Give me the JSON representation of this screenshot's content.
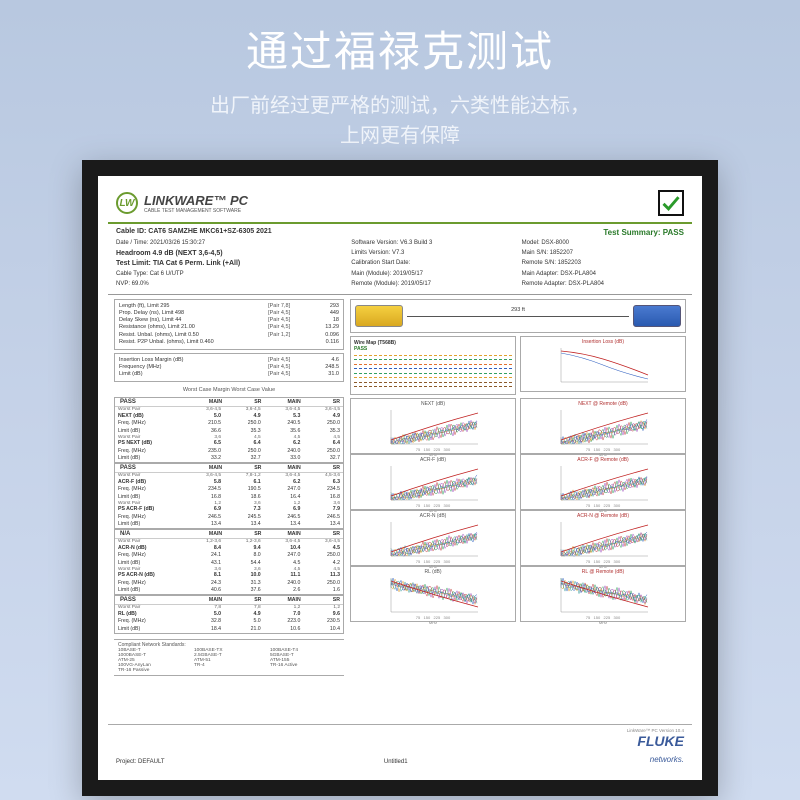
{
  "hero": {
    "title": "通过福禄克测试",
    "subtitle_l1": "出厂前经过更严格的测试，六类性能达标，",
    "subtitle_l2": "上网更有保障"
  },
  "logo": {
    "badge": "LW",
    "line1": "LINKWARE™ PC",
    "line2": "CABLE TEST MANAGEMENT SOFTWARE"
  },
  "summary": {
    "cable_id": "Cable ID: CAT6 SAMZHE MKC61+SZ-6305  2021",
    "date": "Date / Time: 2021/03/26  15:30:27",
    "headroom": "Headroom 4.9 dB (NEXT 3,6-4,5)",
    "test_limit": "Test Limit: TIA Cat 6 Perm. Link (+All)",
    "cable_type": "Cable Type: Cat 6 U/UTP",
    "nvp": "NVP: 69.0%",
    "sw_ver": "Software Version: V6.3 Build 3",
    "limits_ver": "Limits Version: V7.3",
    "cal_start": "Calibration Start Date:",
    "main_mod": "Main (Module): 2019/05/17",
    "remote_mod": "Remote (Module): 2019/05/17",
    "test_summary": "Test Summary: PASS",
    "model": "Model: DSX-8000",
    "main_sn": "Main S/N: 1852207",
    "remote_sn": "Remote S/N: 1852203",
    "main_adapter": "Main Adapter: DSX-PLA804",
    "remote_adapter": "Remote Adapter: DSX-PLA804"
  },
  "len_block": [
    {
      "lab": "Length (ft), Limit 295",
      "p": "[Pair 7,8]",
      "v": "293"
    },
    {
      "lab": "Prop. Delay (ns), Limit 498",
      "p": "[Pair 4,5]",
      "v": "449"
    },
    {
      "lab": "Delay Skew (ns), Limit 44",
      "p": "[Pair 4,5]",
      "v": "18"
    },
    {
      "lab": "Resistance (ohms), Limit 21.00",
      "p": "[Pair 4,5]",
      "v": "13.29"
    },
    {
      "lab": "Resist. Unbal. (ohms), Limit 0.50",
      "p": "[Pair 1,2]",
      "v": "0.096"
    },
    {
      "lab": "Resist. P2P Unbal. (ohms), Limit 0.460",
      "p": "",
      "v": "0.116"
    }
  ],
  "il_block": [
    {
      "lab": "Insertion Loss Margin (dB)",
      "p": "[Pair 4,5]",
      "v": "4.6"
    },
    {
      "lab": "Frequency (MHz)",
      "p": "[Pair 4,5]",
      "v": "248.5"
    },
    {
      "lab": "Limit (dB)",
      "p": "[Pair 4,5]",
      "v": "31.0"
    }
  ],
  "wcm": "Worst Case Margin     Worst Case Value",
  "cable_len": "293 ft",
  "wiremap": {
    "title": "Wire Map (T568B)",
    "status": "PASS"
  },
  "wm_colors": [
    "#e0a030",
    "#30a060",
    "#e07030",
    "#3060c0",
    "#30a060",
    "#e0a030",
    "#8b5a2b",
    "#8b5a2b"
  ],
  "tables": [
    {
      "title": "PASS",
      "rows": [
        {
          "n": "Worst Pair",
          "a": "3,6-4,5",
          "b": "3,6-4,5",
          "c": "3,6-4,5",
          "d": "3,6-4,5"
        },
        {
          "n": "NEXT (dB)",
          "a": "5.0",
          "b": "4.9",
          "c": "5.3",
          "d": "4.9"
        },
        {
          "n": "Freq. (MHz)",
          "a": "210.5",
          "b": "250.0",
          "c": "240.5",
          "d": "250.0"
        },
        {
          "n": "Limit (dB)",
          "a": "36.6",
          "b": "35.3",
          "c": "35.6",
          "d": "35.3"
        },
        {
          "n": "Worst Pair",
          "a": "3,6",
          "b": "4,5",
          "c": "4,5",
          "d": "4,5"
        },
        {
          "n": "PS NEXT (dB)",
          "a": "6.5",
          "b": "6.4",
          "c": "6.2",
          "d": "6.4"
        },
        {
          "n": "Freq. (MHz)",
          "a": "235.0",
          "b": "250.0",
          "c": "240.0",
          "d": "250.0"
        },
        {
          "n": "Limit (dB)",
          "a": "33.2",
          "b": "32.7",
          "c": "33.0",
          "d": "32.7"
        }
      ]
    },
    {
      "title": "PASS",
      "rows": [
        {
          "n": "Worst Pair",
          "a": "3,6-4,5",
          "b": "7,8-1,2",
          "c": "3,6-4,5",
          "d": "4,5-3,6"
        },
        {
          "n": "ACR-F (dB)",
          "a": "5.8",
          "b": "6.1",
          "c": "6.2",
          "d": "6.3"
        },
        {
          "n": "Freq. (MHz)",
          "a": "234.5",
          "b": "190.5",
          "c": "247.0",
          "d": "234.5"
        },
        {
          "n": "Limit (dB)",
          "a": "16.8",
          "b": "18.6",
          "c": "16.4",
          "d": "16.8"
        },
        {
          "n": "Worst Pair",
          "a": "1,2",
          "b": "3,6",
          "c": "1,2",
          "d": "3,6"
        },
        {
          "n": "PS ACR-F (dB)",
          "a": "6.9",
          "b": "7.3",
          "c": "6.9",
          "d": "7.9"
        },
        {
          "n": "Freq. (MHz)",
          "a": "246.5",
          "b": "245.5",
          "c": "246.5",
          "d": "246.5"
        },
        {
          "n": "Limit (dB)",
          "a": "13.4",
          "b": "13.4",
          "c": "13.4",
          "d": "13.4"
        }
      ]
    },
    {
      "title": "N/A",
      "rows": [
        {
          "n": "Worst Pair",
          "a": "1,2-3,6",
          "b": "1,2-3,6",
          "c": "3,6-4,5",
          "d": "3,6-4,5"
        },
        {
          "n": "ACR-N (dB)",
          "a": "8.4",
          "b": "9.4",
          "c": "10.4",
          "d": "4.5"
        },
        {
          "n": "Freq. (MHz)",
          "a": "24.1",
          "b": "8.0",
          "c": "247.0",
          "d": "250.0"
        },
        {
          "n": "Limit (dB)",
          "a": "43.1",
          "b": "54.4",
          "c": "4.5",
          "d": "4.2"
        },
        {
          "n": "Worst Pair",
          "a": "3,6",
          "b": "3,6",
          "c": "4,5",
          "d": "4,5"
        },
        {
          "n": "PS ACR-N (dB)",
          "a": "8.1",
          "b": "10.0",
          "c": "11.1",
          "d": "11.3"
        },
        {
          "n": "Freq. (MHz)",
          "a": "24.3",
          "b": "31.3",
          "c": "240.0",
          "d": "250.0"
        },
        {
          "n": "Limit (dB)",
          "a": "40.6",
          "b": "37.6",
          "c": "2.6",
          "d": "1.6"
        }
      ]
    },
    {
      "title": "PASS",
      "rows": [
        {
          "n": "Worst Pair",
          "a": "7,8",
          "b": "7,8",
          "c": "1,2",
          "d": "1,2"
        },
        {
          "n": "RL (dB)",
          "a": "5.0",
          "b": "4.9",
          "c": "7.0",
          "d": "9.6"
        },
        {
          "n": "Freq. (MHz)",
          "a": "32.8",
          "b": "5.0",
          "c": "223.0",
          "d": "230.5"
        },
        {
          "n": "Limit (dB)",
          "a": "18.4",
          "b": "21.0",
          "c": "10.6",
          "d": "10.4"
        }
      ]
    }
  ],
  "charts": [
    {
      "l": "NEXT (dB)",
      "r": "NEXT @ Remote (dB)"
    },
    {
      "l": "ACR-F (dB)",
      "r": "ACR-F @ Remote (dB)"
    },
    {
      "l": "ACR-N (dB)",
      "r": "ACR-N @ Remote (dB)"
    },
    {
      "l": "RL (dB)",
      "r": "RL @ Remote (dB)"
    }
  ],
  "il_chart": "Insertion Loss (dB)",
  "chart_colors": [
    "#c04040",
    "#3060c0",
    "#30a060",
    "#e0a030",
    "#a050c0",
    "#40a0a0"
  ],
  "xticks": [
    "75",
    "150",
    "225",
    "300"
  ],
  "xlabel": "MHz",
  "compliant": {
    "title": "Compliant Network Standards:",
    "items": [
      "10BASE-T",
      "100BASE-TX",
      "100BASE-T4",
      "1000BASE-T",
      "2.5GBASE-T",
      "5GBASE-T",
      "ATM-25",
      "ATM-51",
      "ATM-155",
      "100VG-AnyLan",
      "TR-4",
      "TR-16 Active",
      "TR-16 Passive",
      "",
      ""
    ]
  },
  "footer": {
    "project": "Project: DEFAULT",
    "file": "Untitled1",
    "brand": "FLUKE",
    "brand2": "networks.",
    "ver": "LinkWare™ PC Version 10.4"
  }
}
